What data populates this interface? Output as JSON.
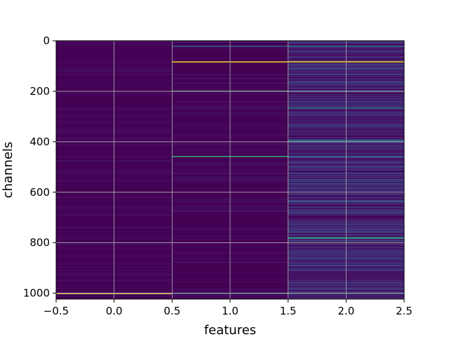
{
  "chart_data": {
    "type": "heatmap",
    "title": "",
    "xlabel": "features",
    "ylabel": "channels",
    "xlim": [
      -0.5,
      2.5
    ],
    "ylim": [
      1023.5,
      -0.5
    ],
    "y_inverted": true,
    "n_rows": 1024,
    "columns": [
      0,
      1,
      2
    ],
    "xticks": [
      -0.5,
      0.0,
      0.5,
      1.0,
      1.5,
      2.0,
      2.5
    ],
    "xtick_labels": [
      "−0.5",
      "0.0",
      "0.5",
      "1.0",
      "1.5",
      "2.0",
      "2.5"
    ],
    "yticks": [
      0,
      200,
      400,
      600,
      800,
      1000
    ],
    "ytick_labels": [
      "0",
      "200",
      "400",
      "600",
      "800",
      "1000"
    ],
    "grid": true,
    "colormap": "viridis",
    "background_color": "#440154",
    "highlight_rows": [
      {
        "column": 0,
        "row": 1000,
        "color": "#fde725"
      },
      {
        "column": 1,
        "row": 82,
        "color": "#fde725"
      },
      {
        "column": 1,
        "row": 20,
        "color": "#31688e"
      },
      {
        "column": 1,
        "row": 198,
        "color": "#35b779"
      },
      {
        "column": 1,
        "row": 457,
        "color": "#35b779"
      },
      {
        "column": 1,
        "row": 1000,
        "color": "#31688e"
      },
      {
        "column": 2,
        "row": 82,
        "color": "#fde725"
      },
      {
        "column": 2,
        "row": 20,
        "color": "#31688e"
      },
      {
        "column": 2,
        "row": 198,
        "color": "#31688e"
      },
      {
        "column": 2,
        "row": 265,
        "color": "#26828e"
      },
      {
        "column": 2,
        "row": 395,
        "color": "#26828e"
      },
      {
        "column": 2,
        "row": 457,
        "color": "#31688e"
      },
      {
        "column": 2,
        "row": 635,
        "color": "#31688e"
      },
      {
        "column": 2,
        "row": 780,
        "color": "#35b779"
      },
      {
        "column": 2,
        "row": 1000,
        "color": "#31688e"
      }
    ]
  }
}
